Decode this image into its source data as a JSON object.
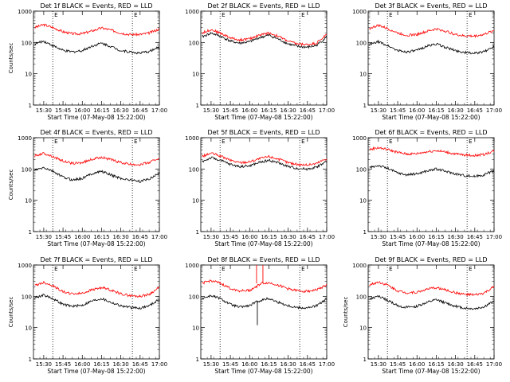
{
  "chart_data": [
    {
      "type": "line",
      "title": "Det 1f BLACK = Events, RED = LLD",
      "xlabel": "Start Time (07-May-08 15:22:00)",
      "ylabel": "Counts/sec",
      "yscale": "log",
      "ylim": [
        1,
        1000
      ],
      "xlim": [
        "15:22",
        "17:00"
      ],
      "xticks": [
        "15:30",
        "15:45",
        "16:00",
        "16:15",
        "16:30",
        "16:45",
        "17:00"
      ],
      "marker_labels": [
        "E",
        "E"
      ],
      "marker_times": [
        "15:37",
        "16:39"
      ],
      "series": [
        {
          "color": "#ff0000",
          "x": [
            "15:23",
            "15:30",
            "15:37",
            "15:45",
            "15:52",
            "16:00",
            "16:07",
            "16:15",
            "16:22",
            "16:30",
            "16:37",
            "16:45",
            "16:52",
            "17:00"
          ],
          "y": [
            300,
            370,
            300,
            220,
            190,
            190,
            230,
            290,
            250,
            200,
            180,
            180,
            200,
            270
          ]
        },
        {
          "color": "#000000",
          "x": [
            "15:23",
            "15:30",
            "15:37",
            "15:45",
            "15:52",
            "16:00",
            "16:07",
            "16:15",
            "16:22",
            "16:30",
            "16:37",
            "16:45",
            "16:52",
            "17:00"
          ],
          "y": [
            90,
            110,
            80,
            55,
            50,
            55,
            75,
            95,
            75,
            55,
            50,
            45,
            52,
            70
          ]
        }
      ]
    },
    {
      "type": "line",
      "title": "Det 2f BLACK = Events, RED = LLD",
      "xlabel": "Start Time (07-May-08 15:22:00)",
      "ylabel": "",
      "yscale": "log",
      "ylim": [
        1,
        1000
      ],
      "xlim": [
        "15:22",
        "17:00"
      ],
      "xticks": [
        "15:30",
        "15:45",
        "16:00",
        "16:15",
        "16:30",
        "16:45",
        "17:00"
      ],
      "marker_labels": [
        "E",
        "E"
      ],
      "marker_times": [
        "15:37",
        "16:39"
      ],
      "series": [
        {
          "color": "#ff0000",
          "x": [
            "15:23",
            "15:30",
            "15:37",
            "15:45",
            "15:52",
            "16:00",
            "16:07",
            "16:15",
            "16:22",
            "16:30",
            "16:37",
            "16:45",
            "16:52",
            "17:00"
          ],
          "y": [
            200,
            260,
            200,
            140,
            120,
            130,
            170,
            200,
            160,
            110,
            90,
            85,
            95,
            180
          ]
        },
        {
          "color": "#000000",
          "x": [
            "15:23",
            "15:30",
            "15:37",
            "15:45",
            "15:52",
            "16:00",
            "16:07",
            "16:15",
            "16:22",
            "16:30",
            "16:37",
            "16:45",
            "16:52",
            "17:00"
          ],
          "y": [
            150,
            200,
            160,
            110,
            95,
            105,
            140,
            170,
            130,
            90,
            75,
            70,
            80,
            150
          ]
        }
      ]
    },
    {
      "type": "line",
      "title": "Det 3f BLACK = Events, RED = LLD",
      "xlabel": "Start Time (07-May-08 15:22:00)",
      "ylabel": "",
      "yscale": "log",
      "ylim": [
        1,
        1000
      ],
      "xlim": [
        "15:22",
        "17:00"
      ],
      "xticks": [
        "15:30",
        "15:45",
        "16:00",
        "16:15",
        "16:30",
        "16:45",
        "17:00"
      ],
      "marker_labels": [
        "E",
        "E"
      ],
      "marker_times": [
        "15:37",
        "16:39"
      ],
      "series": [
        {
          "color": "#ff0000",
          "x": [
            "15:23",
            "15:30",
            "15:37",
            "15:45",
            "15:52",
            "16:00",
            "16:07",
            "16:15",
            "16:22",
            "16:30",
            "16:37",
            "16:45",
            "16:52",
            "17:00"
          ],
          "y": [
            280,
            350,
            280,
            200,
            170,
            180,
            220,
            270,
            230,
            180,
            160,
            160,
            180,
            240
          ]
        },
        {
          "color": "#000000",
          "x": [
            "15:23",
            "15:30",
            "15:37",
            "15:45",
            "15:52",
            "16:00",
            "16:07",
            "16:15",
            "16:22",
            "16:30",
            "16:37",
            "16:45",
            "16:52",
            "17:00"
          ],
          "y": [
            85,
            105,
            80,
            55,
            50,
            55,
            75,
            90,
            70,
            55,
            48,
            45,
            50,
            75
          ]
        }
      ]
    },
    {
      "type": "line",
      "title": "Det 4f BLACK = Events, RED = LLD",
      "xlabel": "Start Time (07-May-08 15:22:00)",
      "ylabel": "Counts/sec",
      "yscale": "log",
      "ylim": [
        1,
        1000
      ],
      "xlim": [
        "15:22",
        "17:00"
      ],
      "xticks": [
        "15:30",
        "15:45",
        "16:00",
        "16:15",
        "16:30",
        "16:45",
        "17:00"
      ],
      "marker_labels": [
        "E",
        "E"
      ],
      "marker_times": [
        "15:37",
        "16:39"
      ],
      "series": [
        {
          "color": "#ff0000",
          "x": [
            "15:23",
            "15:30",
            "15:37",
            "15:45",
            "15:52",
            "16:00",
            "16:07",
            "16:15",
            "16:22",
            "16:30",
            "16:37",
            "16:45",
            "16:52",
            "17:00"
          ],
          "y": [
            260,
            320,
            250,
            180,
            150,
            160,
            200,
            240,
            200,
            160,
            140,
            140,
            160,
            230
          ]
        },
        {
          "color": "#000000",
          "x": [
            "15:23",
            "15:30",
            "15:37",
            "15:45",
            "15:52",
            "16:00",
            "16:07",
            "16:15",
            "16:22",
            "16:30",
            "16:37",
            "16:45",
            "16:52",
            "17:00"
          ],
          "y": [
            90,
            110,
            85,
            55,
            45,
            50,
            70,
            85,
            65,
            50,
            45,
            40,
            48,
            75
          ]
        }
      ]
    },
    {
      "type": "line",
      "title": "Det 5f BLACK = Events, RED = LLD",
      "xlabel": "Start Time (07-May-08 15:22:00)",
      "ylabel": "",
      "yscale": "log",
      "ylim": [
        1,
        1000
      ],
      "xlim": [
        "15:22",
        "17:00"
      ],
      "xticks": [
        "15:30",
        "15:45",
        "16:00",
        "16:15",
        "16:30",
        "16:45",
        "17:00"
      ],
      "marker_labels": [
        "E",
        "E"
      ],
      "marker_times": [
        "15:37",
        "16:39"
      ],
      "series": [
        {
          "color": "#ff0000",
          "x": [
            "15:23",
            "15:30",
            "15:37",
            "15:45",
            "15:52",
            "16:00",
            "16:07",
            "16:15",
            "16:22",
            "16:30",
            "16:37",
            "16:45",
            "16:52",
            "17:00"
          ],
          "y": [
            250,
            320,
            260,
            190,
            160,
            170,
            210,
            250,
            210,
            160,
            140,
            135,
            150,
            220
          ]
        },
        {
          "color": "#000000",
          "x": [
            "15:23",
            "15:30",
            "15:37",
            "15:45",
            "15:52",
            "16:00",
            "16:07",
            "16:15",
            "16:22",
            "16:30",
            "16:37",
            "16:45",
            "16:52",
            "17:00"
          ],
          "y": [
            170,
            230,
            190,
            140,
            120,
            125,
            160,
            190,
            160,
            120,
            105,
            100,
            115,
            175
          ]
        }
      ]
    },
    {
      "type": "line",
      "title": "Det 6f BLACK = Events, RED = LLD",
      "xlabel": "Start Time (07-May-08 15:22:00)",
      "ylabel": "",
      "yscale": "log",
      "ylim": [
        1,
        1000
      ],
      "xlim": [
        "15:22",
        "17:00"
      ],
      "xticks": [
        "15:30",
        "15:45",
        "16:00",
        "16:15",
        "16:30",
        "16:45",
        "17:00"
      ],
      "marker_labels": [
        "E",
        "E"
      ],
      "marker_times": [
        "15:37",
        "16:39"
      ],
      "series": [
        {
          "color": "#ff0000",
          "x": [
            "15:23",
            "15:30",
            "15:37",
            "15:45",
            "15:52",
            "16:00",
            "16:07",
            "16:15",
            "16:22",
            "16:30",
            "16:37",
            "16:45",
            "16:52",
            "17:00"
          ],
          "y": [
            420,
            480,
            420,
            340,
            300,
            310,
            350,
            390,
            350,
            300,
            280,
            270,
            290,
            380
          ]
        },
        {
          "color": "#000000",
          "x": [
            "15:23",
            "15:30",
            "15:37",
            "15:45",
            "15:52",
            "16:00",
            "16:07",
            "16:15",
            "16:22",
            "16:30",
            "16:37",
            "16:45",
            "16:52",
            "17:00"
          ],
          "y": [
            110,
            130,
            105,
            75,
            65,
            70,
            85,
            100,
            85,
            70,
            62,
            58,
            65,
            90
          ]
        }
      ]
    },
    {
      "type": "line",
      "title": "Det 7f BLACK = Events, RED = LLD",
      "xlabel": "Start Time (07-May-08 15:22:00)",
      "ylabel": "Counts/sec",
      "yscale": "log",
      "ylim": [
        1,
        1000
      ],
      "xlim": [
        "15:22",
        "17:00"
      ],
      "xticks": [
        "15:30",
        "15:45",
        "16:00",
        "16:15",
        "16:30",
        "16:45",
        "17:00"
      ],
      "marker_labels": [
        "E",
        "E"
      ],
      "marker_times": [
        "15:37",
        "16:39"
      ],
      "series": [
        {
          "color": "#ff0000",
          "x": [
            "15:23",
            "15:30",
            "15:37",
            "15:45",
            "15:52",
            "16:00",
            "16:07",
            "16:15",
            "16:22",
            "16:30",
            "16:37",
            "16:45",
            "16:52",
            "17:00"
          ],
          "y": [
            220,
            280,
            220,
            140,
            120,
            125,
            160,
            190,
            160,
            120,
            105,
            100,
            115,
            190
          ]
        },
        {
          "color": "#000000",
          "x": [
            "15:23",
            "15:30",
            "15:37",
            "15:45",
            "15:52",
            "16:00",
            "16:07",
            "16:15",
            "16:22",
            "16:30",
            "16:37",
            "16:45",
            "16:52",
            "17:00"
          ],
          "y": [
            90,
            110,
            85,
            55,
            48,
            52,
            70,
            85,
            65,
            50,
            44,
            42,
            50,
            80
          ]
        }
      ]
    },
    {
      "type": "line",
      "title": "Det 8f BLACK = Events, RED = LLD",
      "xlabel": "Start Time (07-May-08 15:22:00)",
      "ylabel": "",
      "yscale": "log",
      "ylim": [
        1,
        1000
      ],
      "xlim": [
        "15:22",
        "17:00"
      ],
      "xticks": [
        "15:30",
        "15:45",
        "16:00",
        "16:15",
        "16:30",
        "16:45",
        "17:00"
      ],
      "marker_labels": [
        "E",
        "E"
      ],
      "marker_times": [
        "15:37",
        "16:39"
      ],
      "spike_time": "16:06",
      "spike_red_top": 1000,
      "spike_black_bottom": 12,
      "series": [
        {
          "color": "#ff0000",
          "x": [
            "15:23",
            "15:30",
            "15:37",
            "15:45",
            "15:52",
            "16:00",
            "16:05",
            "16:09",
            "16:15",
            "16:22",
            "16:30",
            "16:37",
            "16:45",
            "16:52",
            "17:00"
          ],
          "y": [
            260,
            320,
            260,
            180,
            150,
            155,
            200,
            260,
            270,
            230,
            175,
            150,
            145,
            160,
            230
          ]
        },
        {
          "color": "#000000",
          "x": [
            "15:23",
            "15:30",
            "15:37",
            "15:45",
            "15:52",
            "16:00",
            "16:05",
            "16:09",
            "16:15",
            "16:22",
            "16:30",
            "16:37",
            "16:45",
            "16:52",
            "17:00"
          ],
          "y": [
            85,
            105,
            85,
            55,
            45,
            50,
            65,
            75,
            85,
            65,
            50,
            44,
            42,
            50,
            80
          ]
        }
      ]
    },
    {
      "type": "line",
      "title": "Det 9f BLACK = Events, RED = LLD",
      "xlabel": "Start Time (07-May-08 15:22:00)",
      "ylabel": "Counts/sec",
      "yscale": "log",
      "ylim": [
        1,
        1000
      ],
      "xlim": [
        "15:22",
        "17:00"
      ],
      "xticks": [
        "15:30",
        "15:45",
        "16:00",
        "16:15",
        "16:30",
        "16:45",
        "17:00"
      ],
      "marker_labels": [
        "E",
        "E"
      ],
      "marker_times": [
        "15:37",
        "16:39"
      ],
      "series": [
        {
          "color": "#ff0000",
          "x": [
            "15:23",
            "15:30",
            "15:37",
            "15:45",
            "15:52",
            "16:00",
            "16:07",
            "16:15",
            "16:22",
            "16:30",
            "16:37",
            "16:45",
            "16:52",
            "17:00"
          ],
          "y": [
            230,
            290,
            230,
            150,
            130,
            135,
            165,
            190,
            160,
            130,
            115,
            110,
            125,
            200
          ]
        },
        {
          "color": "#000000",
          "x": [
            "15:23",
            "15:30",
            "15:37",
            "15:45",
            "15:52",
            "16:00",
            "16:07",
            "16:15",
            "16:22",
            "16:30",
            "16:37",
            "16:45",
            "16:52",
            "17:00"
          ],
          "y": [
            80,
            100,
            75,
            50,
            44,
            48,
            62,
            78,
            62,
            48,
            42,
            40,
            46,
            70
          ]
        }
      ]
    }
  ],
  "axis": {
    "yticks": [
      1,
      10,
      100,
      1000
    ],
    "ytick_labels": [
      "1",
      "10",
      "100",
      "1000"
    ]
  }
}
